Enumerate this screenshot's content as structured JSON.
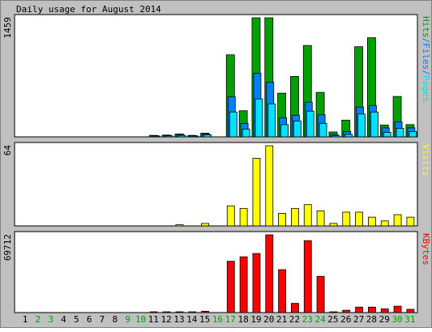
{
  "title": "Daily usage for August 2014",
  "colors": {
    "background": "#c0c0c0",
    "panel": "#ffffff",
    "border": "#000000",
    "hits": "#00a000",
    "files": "#0080ff",
    "pages": "#00e0ff",
    "visits": "#ffff00",
    "kbytes": "#ff0000",
    "weekend_label": "#00a000",
    "weekday_label": "#000000"
  },
  "chart_data": [
    {
      "type": "bar",
      "panel": "hits",
      "max_label": "1459",
      "ylim": [
        0,
        1459
      ],
      "legend": [
        {
          "name": "Pages",
          "color": "#00e0ff"
        },
        {
          "name": "Files",
          "color": "#0080ff"
        },
        {
          "name": "Hits",
          "color": "#00a000"
        }
      ],
      "categories": [
        "1",
        "2",
        "3",
        "4",
        "5",
        "6",
        "7",
        "8",
        "9",
        "10",
        "11",
        "12",
        "13",
        "14",
        "15",
        "16",
        "17",
        "18",
        "19",
        "20",
        "21",
        "22",
        "23",
        "24",
        "25",
        "26",
        "27",
        "28",
        "29",
        "30",
        "31"
      ],
      "series": [
        {
          "name": "Hits",
          "values": [
            0,
            0,
            0,
            0,
            0,
            0,
            0,
            0,
            0,
            0,
            18,
            22,
            35,
            18,
            45,
            0,
            1005,
            320,
            1459,
            1459,
            535,
            740,
            1120,
            545,
            60,
            205,
            1105,
            1215,
            145,
            495,
            150
          ]
        },
        {
          "name": "Files",
          "values": [
            0,
            0,
            0,
            0,
            0,
            0,
            0,
            0,
            0,
            0,
            15,
            18,
            28,
            14,
            36,
            0,
            490,
            165,
            780,
            670,
            235,
            265,
            425,
            270,
            30,
            65,
            365,
            385,
            110,
            185,
            110
          ]
        },
        {
          "name": "Pages",
          "values": [
            0,
            0,
            0,
            0,
            0,
            0,
            0,
            0,
            0,
            0,
            10,
            12,
            18,
            10,
            25,
            0,
            305,
            95,
            465,
            405,
            150,
            195,
            315,
            165,
            15,
            30,
            280,
            305,
            55,
            105,
            65
          ]
        }
      ]
    },
    {
      "type": "bar",
      "panel": "visits",
      "max_label": "64",
      "ylim": [
        0,
        64
      ],
      "legend": [
        {
          "name": "Visits",
          "color": "#ffff00"
        }
      ],
      "categories": [
        "1",
        "2",
        "3",
        "4",
        "5",
        "6",
        "7",
        "8",
        "9",
        "10",
        "11",
        "12",
        "13",
        "14",
        "15",
        "16",
        "17",
        "18",
        "19",
        "20",
        "21",
        "22",
        "23",
        "24",
        "25",
        "26",
        "27",
        "28",
        "29",
        "30",
        "31"
      ],
      "series": [
        {
          "name": "Visits",
          "values": [
            0,
            0,
            0,
            0,
            0,
            0,
            0,
            0,
            0,
            0,
            0,
            0,
            1,
            0,
            2,
            0,
            16,
            14,
            54,
            64,
            10,
            14,
            17,
            12,
            2,
            11,
            11,
            7,
            4,
            9,
            7
          ]
        }
      ]
    },
    {
      "type": "bar",
      "panel": "kbytes",
      "max_label": "69712",
      "ylim": [
        0,
        69712
      ],
      "legend": [
        {
          "name": "KBytes",
          "color": "#ff0000"
        }
      ],
      "categories": [
        "1",
        "2",
        "3",
        "4",
        "5",
        "6",
        "7",
        "8",
        "9",
        "10",
        "11",
        "12",
        "13",
        "14",
        "15",
        "16",
        "17",
        "18",
        "19",
        "20",
        "21",
        "22",
        "23",
        "24",
        "25",
        "26",
        "27",
        "28",
        "29",
        "30",
        "31"
      ],
      "series": [
        {
          "name": "KBytes",
          "values": [
            0,
            0,
            0,
            0,
            0,
            0,
            0,
            0,
            0,
            0,
            700,
            700,
            700,
            700,
            1200,
            0,
            46000,
            50000,
            53000,
            69712,
            38500,
            8300,
            64500,
            32500,
            700,
            2100,
            4900,
            4900,
            3300,
            5700,
            2900
          ]
        }
      ]
    }
  ],
  "x_axis": {
    "days": [
      {
        "label": "1",
        "weekend": false
      },
      {
        "label": "2",
        "weekend": true
      },
      {
        "label": "3",
        "weekend": true
      },
      {
        "label": "4",
        "weekend": false
      },
      {
        "label": "5",
        "weekend": false
      },
      {
        "label": "6",
        "weekend": false
      },
      {
        "label": "7",
        "weekend": false
      },
      {
        "label": "8",
        "weekend": false
      },
      {
        "label": "9",
        "weekend": true
      },
      {
        "label": "10",
        "weekend": true
      },
      {
        "label": "11",
        "weekend": false
      },
      {
        "label": "12",
        "weekend": false
      },
      {
        "label": "13",
        "weekend": false
      },
      {
        "label": "14",
        "weekend": false
      },
      {
        "label": "15",
        "weekend": false
      },
      {
        "label": "16",
        "weekend": true
      },
      {
        "label": "17",
        "weekend": true
      },
      {
        "label": "18",
        "weekend": false
      },
      {
        "label": "19",
        "weekend": false
      },
      {
        "label": "20",
        "weekend": false
      },
      {
        "label": "21",
        "weekend": false
      },
      {
        "label": "22",
        "weekend": false
      },
      {
        "label": "23",
        "weekend": true
      },
      {
        "label": "24",
        "weekend": true
      },
      {
        "label": "25",
        "weekend": false
      },
      {
        "label": "26",
        "weekend": false
      },
      {
        "label": "27",
        "weekend": false
      },
      {
        "label": "28",
        "weekend": false
      },
      {
        "label": "29",
        "weekend": false
      },
      {
        "label": "30",
        "weekend": true
      },
      {
        "label": "31",
        "weekend": true
      }
    ]
  }
}
